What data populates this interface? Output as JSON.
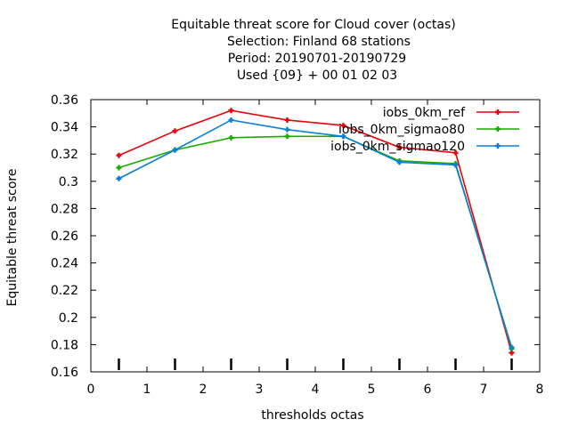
{
  "chart_data": {
    "type": "line",
    "title_lines": [
      "Equitable threat score  for Cloud cover (octas)",
      "Selection: Finland     68 stations",
      "Period: 20190701-20190729",
      "Used {09} + 00 01 02 03"
    ],
    "xlabel": "thresholds octas",
    "ylabel": "Equitable threat score",
    "xlim": [
      0,
      8
    ],
    "ylim": [
      0.16,
      0.36
    ],
    "x_ticks": [
      "0",
      "1",
      "2",
      "3",
      "4",
      "5",
      "6",
      "7",
      "8"
    ],
    "y_ticks": [
      "0.16",
      "0.18",
      "0.2",
      "0.22",
      "0.24",
      "0.26",
      "0.28",
      "0.3",
      "0.32",
      "0.34",
      "0.36"
    ],
    "grid": false,
    "legend_position": "top-right",
    "sample_markers_x": [
      0.5,
      1.5,
      2.5,
      3.5,
      4.5,
      5.5,
      6.5,
      7.5
    ],
    "x": [
      0.5,
      1.5,
      2.5,
      3.5,
      4.5,
      5.5,
      6.5,
      7.5
    ],
    "series": [
      {
        "name": "iobs_0km_ref",
        "color": "#e8000b",
        "values": [
          0.319,
          0.337,
          0.352,
          0.345,
          0.341,
          0.325,
          0.321,
          0.174
        ]
      },
      {
        "name": "iobs_0km_sigmao80",
        "color": "#1aaa00",
        "values": [
          0.31,
          0.323,
          0.332,
          0.333,
          0.333,
          0.315,
          0.313,
          0.177
        ]
      },
      {
        "name": "iobs_0km_sigmao120",
        "color": "#0a7fd9",
        "values": [
          0.302,
          0.323,
          0.345,
          0.338,
          0.333,
          0.314,
          0.312,
          0.178
        ]
      }
    ]
  }
}
